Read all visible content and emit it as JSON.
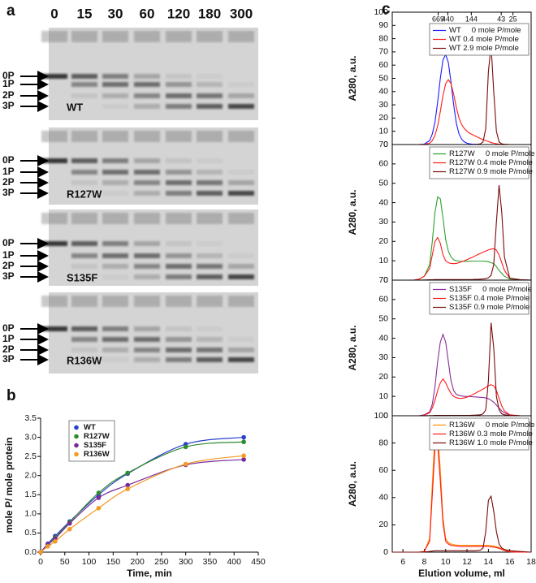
{
  "panel_labels": [
    "a",
    "b",
    "c"
  ],
  "gels": {
    "lanes": [
      "0",
      "15",
      "30",
      "60",
      "120",
      "180",
      "300"
    ],
    "bands": [
      "0P",
      "1P",
      "2P",
      "3P"
    ],
    "samples": [
      "WT",
      "R127W",
      "S135F",
      "R136W"
    ]
  },
  "chart_data": [
    {
      "type": "scatter",
      "xlabel": "Time, min",
      "ylabel": "mole P/ mole protein",
      "fit_line": true,
      "legend": "upper left",
      "x": [
        0,
        15,
        30,
        60,
        120,
        180,
        300,
        420
      ],
      "xlim": [
        0,
        450
      ],
      "xticks": [
        0,
        50,
        100,
        150,
        200,
        250,
        300,
        350,
        400,
        450
      ],
      "ylim": [
        0,
        3.5
      ],
      "yticks": [
        {
          "value": 0,
          "label": "0.0"
        },
        0.5,
        {
          "value": 1,
          "label": "1.0"
        },
        1.5,
        {
          "value": 2,
          "label": "2.0"
        },
        2.5,
        {
          "value": 3,
          "label": "3.0"
        },
        3.5
      ],
      "series": [
        {
          "name": "WT",
          "color": "#2b3fcf",
          "values": [
            0,
            0.22,
            0.42,
            0.8,
            1.5,
            2.05,
            2.82,
            3.0
          ]
        },
        {
          "name": "R127W",
          "color": "#2e8b2e",
          "values": [
            0,
            0.2,
            0.38,
            0.78,
            1.55,
            2.07,
            2.75,
            2.88
          ]
        },
        {
          "name": "S135F",
          "color": "#7b2a9a",
          "values": [
            0,
            0.2,
            0.35,
            0.75,
            1.42,
            1.75,
            2.28,
            2.42
          ]
        },
        {
          "name": "R136W",
          "color": "#f59a23",
          "values": [
            0,
            0.15,
            0.28,
            0.6,
            1.15,
            1.65,
            2.3,
            2.52
          ]
        }
      ]
    },
    {
      "type": "line",
      "ylabel": "A280, a.u.",
      "legend": "upper right",
      "top_markers": [
        {
          "value": 9.3,
          "label": "669"
        },
        {
          "value": 10.2,
          "label": "440"
        },
        {
          "value": 12.4,
          "label": "144"
        },
        {
          "value": 15.2,
          "label": "43"
        },
        {
          "value": 16.3,
          "label": "25"
        }
      ],
      "x": [
        5,
        6,
        7,
        7.5,
        8,
        8.5,
        8.75,
        9,
        9.25,
        9.5,
        9.75,
        10,
        10.25,
        10.5,
        10.75,
        11,
        11.25,
        11.5,
        11.75,
        12,
        12.25,
        12.5,
        12.75,
        13,
        13.25,
        13.5,
        13.75,
        14,
        14.25,
        14.5,
        14.75,
        15,
        15.25,
        15.5,
        16,
        17,
        18
      ],
      "xlim": [
        5,
        18
      ],
      "ylim": [
        0,
        100
      ],
      "yticks": [
        0,
        10,
        20,
        30,
        40,
        50,
        60,
        70,
        80,
        90,
        100
      ],
      "series": [
        {
          "name": "WT     0 mole P/mole",
          "color": "#1a1aff",
          "values": [
            0,
            0,
            0,
            0,
            0.3,
            3,
            8,
            17,
            32,
            50,
            64,
            68,
            62,
            47,
            30,
            16,
            8,
            4,
            2,
            1,
            0.5,
            0.3,
            0.2,
            0.1,
            0,
            0,
            0,
            0,
            0,
            0,
            0,
            0,
            0,
            0,
            0,
            0,
            0
          ]
        },
        {
          "name": "WT 0.4 mole P/mole",
          "color": "#ff1a1a",
          "values": [
            0,
            0,
            0,
            0,
            0.2,
            1,
            3,
            7,
            14,
            25,
            37,
            46,
            49,
            46,
            38,
            28,
            20,
            15,
            12,
            10,
            8.5,
            7.5,
            6.5,
            5.5,
            4.5,
            3.8,
            3,
            2.3,
            1.5,
            1,
            0.6,
            0.3,
            0.2,
            0.1,
            0,
            0,
            0
          ]
        },
        {
          "name": "WT 2.9 mole P/mole",
          "color": "#7a0a0a",
          "values": [
            0,
            0,
            0,
            0,
            0,
            0,
            0,
            0,
            0,
            0,
            0,
            0,
            0,
            0,
            0,
            0,
            0,
            0,
            0,
            0,
            0,
            0,
            0,
            0.2,
            0.5,
            2,
            12,
            55,
            75,
            40,
            10,
            2,
            0.5,
            0.2,
            0,
            0,
            0
          ]
        }
      ]
    },
    {
      "type": "line",
      "ylabel": "A280, a.u.",
      "legend": "upper right",
      "x": [
        5,
        6,
        7,
        7.5,
        8,
        8.5,
        8.75,
        9,
        9.25,
        9.5,
        9.75,
        10,
        10.25,
        10.5,
        10.75,
        11,
        11.25,
        11.5,
        11.75,
        12,
        12.25,
        12.5,
        12.75,
        13,
        13.25,
        13.5,
        13.75,
        14,
        14.25,
        14.5,
        14.75,
        15,
        15.25,
        15.5,
        16,
        17,
        18
      ],
      "xlim": [
        5,
        18
      ],
      "ylim": [
        0,
        70
      ],
      "yticks": [
        0,
        10,
        20,
        30,
        40,
        50,
        60,
        70
      ],
      "series": [
        {
          "name": "R127W     0 mole P/mole",
          "color": "#2ca02c",
          "values": [
            0,
            0,
            0,
            0.5,
            2,
            8,
            20,
            35,
            43,
            42,
            32,
            21,
            15,
            12,
            10.5,
            10,
            9.8,
            9.7,
            9.7,
            9.7,
            9.7,
            9.8,
            9.8,
            9.8,
            9.8,
            9.8,
            9.7,
            9.5,
            9,
            8.5,
            7,
            5,
            3.5,
            2,
            0.6,
            0.1,
            0
          ]
        },
        {
          "name": "R127W 0.4 mole P/mole",
          "color": "#ff1a1a",
          "values": [
            0,
            0,
            0,
            0.5,
            2,
            6,
            13,
            20,
            22,
            19,
            13,
            10,
            9,
            8.6,
            8.5,
            8.6,
            9,
            9.5,
            10,
            10.6,
            11.2,
            11.8,
            12.5,
            13.2,
            13.8,
            14.4,
            15,
            15.6,
            16,
            16.2,
            15.5,
            13,
            9,
            5,
            1,
            0.2,
            0
          ]
        },
        {
          "name": "R127W 0.9 mole P/mole",
          "color": "#7a0a0a",
          "values": [
            0,
            0,
            0,
            0,
            0.1,
            0.2,
            0.2,
            0.3,
            0.3,
            0.3,
            0.3,
            0.3,
            0.3,
            0.3,
            0.3,
            0.3,
            0.3,
            0.3,
            0.3,
            0.3,
            0.3,
            0.3,
            0.4,
            0.4,
            0.5,
            0.6,
            0.8,
            1.2,
            2.5,
            8,
            30,
            49,
            35,
            12,
            1,
            0.2,
            0
          ]
        }
      ]
    },
    {
      "type": "line",
      "ylabel": "A280, a.u.",
      "legend": "upper right",
      "x": [
        5,
        6,
        7,
        7.5,
        8,
        8.5,
        8.75,
        9,
        9.25,
        9.5,
        9.75,
        10,
        10.25,
        10.5,
        10.75,
        11,
        11.25,
        11.5,
        11.75,
        12,
        12.25,
        12.5,
        12.75,
        13,
        13.25,
        13.5,
        13.75,
        14,
        14.25,
        14.5,
        14.75,
        15,
        15.25,
        15.5,
        16,
        17,
        18
      ],
      "xlim": [
        5,
        18
      ],
      "ylim": [
        0,
        70
      ],
      "yticks": [
        0,
        10,
        20,
        30,
        40,
        50,
        60,
        70
      ],
      "series": [
        {
          "name": "S135F     0 mole P/mole",
          "color": "#8b2a9b",
          "values": [
            0,
            0,
            0,
            0,
            0.5,
            2,
            6,
            15,
            28,
            38,
            42,
            38,
            28,
            18,
            13,
            11,
            10.5,
            10.2,
            10,
            10,
            9.9,
            9.8,
            9.7,
            9.6,
            9.5,
            9.4,
            9.2,
            8.8,
            8,
            7,
            5.5,
            4,
            2.5,
            1.5,
            0.3,
            0,
            0
          ]
        },
        {
          "name": "S135F 0.4 mole P/mole",
          "color": "#ff1a1a",
          "values": [
            0,
            0,
            0,
            0,
            0.3,
            1.5,
            4,
            8,
            13,
            17,
            19,
            17,
            14,
            11.5,
            10,
            9.3,
            9,
            9,
            9.2,
            9.6,
            10.2,
            10.8,
            11.5,
            12.3,
            13,
            13.8,
            14.6,
            15.5,
            16,
            15.5,
            13,
            9,
            5,
            2.5,
            0.5,
            0,
            0
          ]
        },
        {
          "name": "S135F 0.9 mole P/mole",
          "color": "#7a0a0a",
          "values": [
            0,
            0,
            0,
            0,
            0,
            0.1,
            0.1,
            0.2,
            0.2,
            0.2,
            0.2,
            0.2,
            0.2,
            0.2,
            0.2,
            0.2,
            0.2,
            0.2,
            0.2,
            0.2,
            0.2,
            0.3,
            0.3,
            0.4,
            0.5,
            1,
            3,
            18,
            48,
            35,
            10,
            3,
            1,
            0.5,
            0.1,
            0,
            0
          ]
        }
      ]
    },
    {
      "type": "line",
      "ylabel": "A280, a.u.",
      "xlabel": "Elution volume, ml",
      "legend": "upper right",
      "x": [
        5,
        6,
        7,
        7.5,
        8,
        8.5,
        8.75,
        9,
        9.25,
        9.5,
        9.75,
        10,
        10.25,
        10.5,
        10.75,
        11,
        11.25,
        11.5,
        11.75,
        12,
        12.25,
        12.5,
        12.75,
        13,
        13.25,
        13.5,
        13.75,
        14,
        14.25,
        14.5,
        14.75,
        15,
        15.25,
        15.5,
        16,
        17,
        18
      ],
      "xlim": [
        5,
        18
      ],
      "xticks": [
        6,
        8,
        10,
        12,
        14,
        16,
        18
      ],
      "ylim": [
        0,
        100
      ],
      "yticks": [
        0,
        20,
        40,
        60,
        80,
        100
      ],
      "series": [
        {
          "name": "R136W     0 mole P/mole",
          "color": "#ff8c00",
          "values": [
            0,
            0,
            0,
            0,
            0.5,
            10,
            50,
            88,
            90,
            60,
            25,
            10,
            7,
            6,
            5.5,
            5.2,
            5,
            5,
            5,
            5,
            5,
            5,
            5,
            5,
            5,
            5,
            5,
            5,
            4.8,
            4.5,
            4,
            3.5,
            2.5,
            1.5,
            0.3,
            0,
            0
          ]
        },
        {
          "name": "R136W 0.3 mole P/mole",
          "color": "#ff1a1a",
          "values": [
            0,
            0,
            0,
            0,
            0.5,
            8,
            42,
            76,
            79,
            52,
            21,
            8,
            6,
            5,
            4.7,
            4.5,
            4.3,
            4.2,
            4.2,
            4.2,
            4.2,
            4.2,
            4.2,
            4.2,
            4.2,
            4.2,
            4.2,
            4.1,
            4,
            3.7,
            3.3,
            2.8,
            2,
            1.2,
            0.2,
            0,
            0
          ]
        },
        {
          "name": "R136W 1.0 mole P/mole",
          "color": "#7a0a0a",
          "values": [
            0,
            0,
            0,
            0,
            0.2,
            0.5,
            0.8,
            1,
            1,
            1,
            1,
            1,
            1,
            1,
            1,
            1,
            1,
            1,
            1,
            1,
            1,
            1,
            1.1,
            1.2,
            1.5,
            3,
            15,
            38,
            41,
            30,
            15,
            6,
            3,
            2,
            1,
            0.5,
            0
          ]
        }
      ]
    }
  ]
}
